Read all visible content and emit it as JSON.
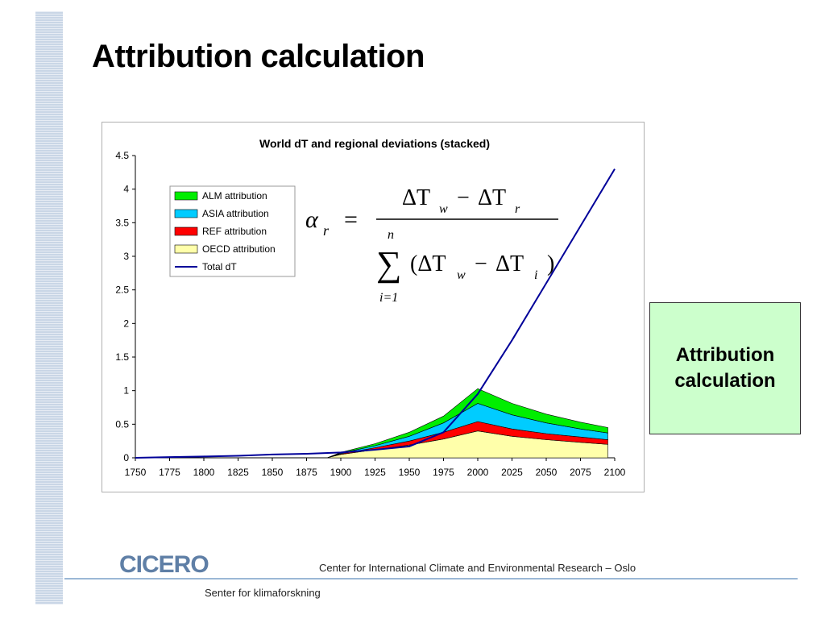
{
  "slide": {
    "title": "Attribution calculation",
    "side_box": "Attribution\ncalculation",
    "footer_org": "CICERO",
    "footer_center": "Center for International Climate and Environmental Research – Oslo",
    "footer_sub": "Senter for klimaforskning"
  },
  "chart_data": {
    "type": "area",
    "title": "World dT and regional deviations (stacked)",
    "xlabel": "",
    "ylabel": "",
    "xlim": [
      1750,
      2100
    ],
    "ylim": [
      0,
      4.5
    ],
    "x_ticks": [
      "1750",
      "1775",
      "1800",
      "1825",
      "1850",
      "1875",
      "1900",
      "1925",
      "1950",
      "1975",
      "2000",
      "2025",
      "2050",
      "2075",
      "2100"
    ],
    "y_ticks": [
      "0",
      "0.5",
      "1",
      "1.5",
      "2",
      "2.5",
      "3",
      "3.5",
      "4",
      "4.5"
    ],
    "grid": false,
    "legend_position": "top-left",
    "x": [
      1890,
      1900,
      1925,
      1950,
      1975,
      2000,
      2025,
      2050,
      2075,
      2095
    ],
    "series": [
      {
        "name": "OECD attribution",
        "kind": "stacked-area",
        "color": "#ffffaa",
        "values": [
          0,
          0.05,
          0.12,
          0.19,
          0.28,
          0.4,
          0.32,
          0.27,
          0.23,
          0.2
        ]
      },
      {
        "name": "REF attribution",
        "kind": "stacked-area",
        "color": "#ff0000",
        "values": [
          0,
          0.01,
          0.03,
          0.06,
          0.1,
          0.14,
          0.11,
          0.09,
          0.08,
          0.07
        ]
      },
      {
        "name": "ASIA attribution",
        "kind": "stacked-area",
        "color": "#00ccff",
        "values": [
          0,
          0.01,
          0.03,
          0.07,
          0.14,
          0.27,
          0.21,
          0.16,
          0.12,
          0.1
        ]
      },
      {
        "name": "ALM attribution",
        "kind": "stacked-area",
        "color": "#00ee00",
        "values": [
          0,
          0.01,
          0.03,
          0.06,
          0.1,
          0.22,
          0.17,
          0.13,
          0.1,
          0.08
        ]
      },
      {
        "name": "Total dT",
        "kind": "line",
        "color": "#000099",
        "x": [
          1750,
          1775,
          1800,
          1825,
          1850,
          1875,
          1900,
          1925,
          1950,
          1975,
          2000,
          2025,
          2050,
          2075,
          2100
        ],
        "values": [
          0,
          0.01,
          0.02,
          0.03,
          0.05,
          0.06,
          0.08,
          0.12,
          0.17,
          0.38,
          0.95,
          1.75,
          2.6,
          3.45,
          4.3
        ]
      }
    ],
    "formula": {
      "lhs": "α",
      "lhs_sub": "r",
      "num_1": "ΔT",
      "num_1_sub": "w",
      "minus": "−",
      "num_2": "ΔT",
      "num_2_sub": "r",
      "sum_top": "n",
      "sum_bottom": "i=1",
      "den_1": "(ΔT",
      "den_1_sub": "w",
      "den_2": "ΔT",
      "den_2_sub": "i",
      "den_close": ")"
    }
  }
}
